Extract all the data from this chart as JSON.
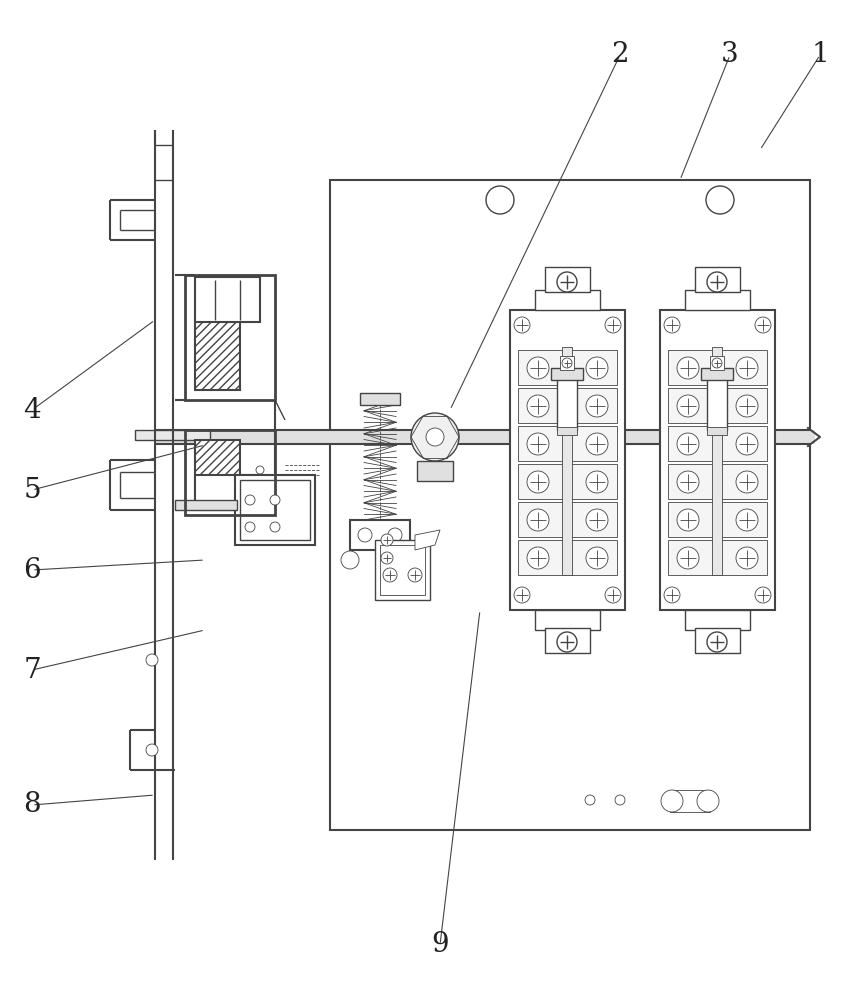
{
  "background_color": "#ffffff",
  "line_color": "#444444",
  "label_color": "#222222",
  "figsize": [
    8.64,
    10.0
  ],
  "dpi": 100,
  "label_fontsize": 20,
  "labels_data": [
    [
      "1",
      820,
      945,
      760,
      850
    ],
    [
      "2",
      620,
      945,
      450,
      590
    ],
    [
      "3",
      730,
      945,
      680,
      820
    ],
    [
      "4",
      32,
      590,
      155,
      680
    ],
    [
      "5",
      32,
      510,
      205,
      555
    ],
    [
      "6",
      32,
      430,
      205,
      440
    ],
    [
      "7",
      32,
      330,
      205,
      370
    ],
    [
      "8",
      32,
      195,
      155,
      205
    ],
    [
      "9",
      440,
      55,
      480,
      390
    ]
  ]
}
